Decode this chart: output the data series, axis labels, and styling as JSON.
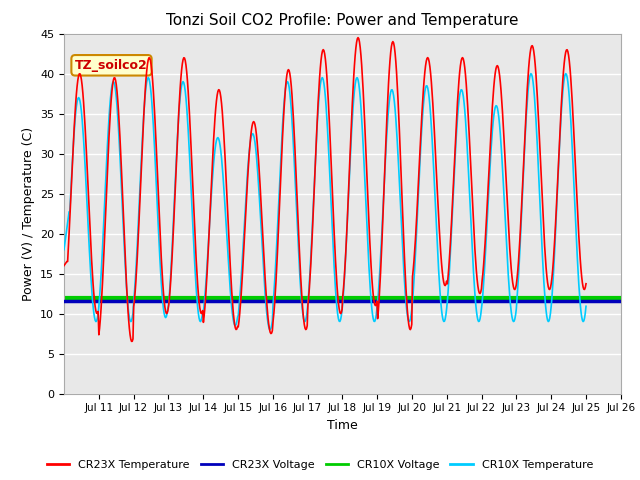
{
  "title": "Tonzi Soil CO2 Profile: Power and Temperature",
  "xlabel": "Time",
  "ylabel": "Power (V) / Temperature (C)",
  "ylim": [
    0,
    45
  ],
  "yticks": [
    0,
    5,
    10,
    15,
    20,
    25,
    30,
    35,
    40,
    45
  ],
  "xlim_start": 10,
  "xlim_end": 26,
  "xtick_labels": [
    "Jul 11",
    "Jul 12",
    "Jul 13",
    "Jul 14",
    "Jul 15",
    "Jul 16",
    "Jul 17",
    "Jul 18",
    "Jul 19",
    "Jul 20",
    "Jul 21",
    "Jul 22",
    "Jul 23",
    "Jul 24",
    "Jul 25",
    "Jul 26"
  ],
  "cr23x_voltage_value": 11.6,
  "cr10x_voltage_value": 12.0,
  "annotation_text": "TZ_soilco2",
  "annotation_bg": "#ffffcc",
  "annotation_border": "#cc8800",
  "legend_entries": [
    "CR23X Temperature",
    "CR23X Voltage",
    "CR10X Voltage",
    "CR10X Temperature"
  ],
  "legend_colors": [
    "#ff0000",
    "#0000bb",
    "#00cc00",
    "#00ccff"
  ],
  "cr23x_temp_color": "#ff0000",
  "cr10x_temp_color": "#00ccff",
  "cr23x_voltage_color": "#0000bb",
  "cr10x_voltage_color": "#00cc00",
  "plot_bg_color": "#e8e8e8",
  "fig_bg_color": "#ffffff",
  "grid_color": "#ffffff"
}
